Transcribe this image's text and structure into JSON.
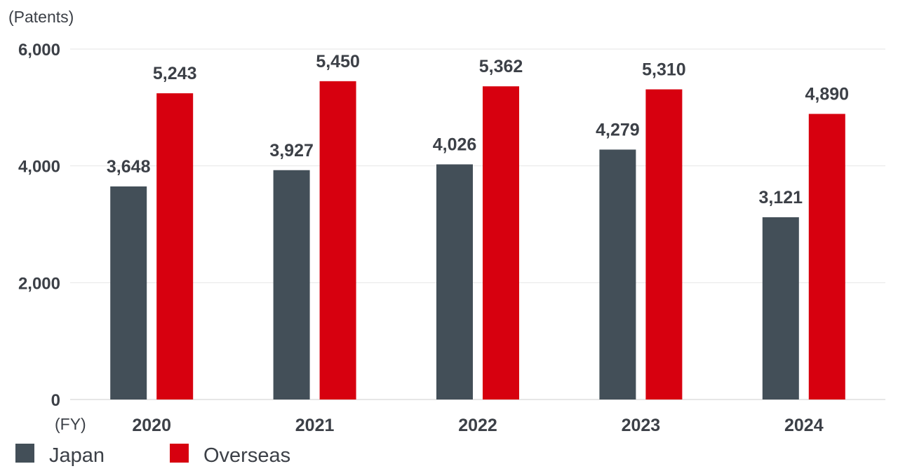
{
  "chart_data": {
    "type": "bar",
    "ylabel": "(Patents)",
    "xlabel": "(FY)",
    "categories": [
      "2020",
      "2021",
      "2022",
      "2023",
      "2024"
    ],
    "series": [
      {
        "name": "Japan",
        "values": [
          3648,
          3927,
          4026,
          4279,
          3121
        ],
        "labels": [
          "3,648",
          "3,927",
          "4,026",
          "4,279",
          "3,121"
        ],
        "color": "#434f58"
      },
      {
        "name": "Overseas",
        "values": [
          5243,
          5450,
          5362,
          5310,
          4890
        ],
        "labels": [
          "5,243",
          "5,450",
          "5,362",
          "5,310",
          "4,890"
        ],
        "color": "#d7000f"
      }
    ],
    "ylim": [
      0,
      6000
    ],
    "yticks": [
      0,
      2000,
      4000,
      6000
    ],
    "ytick_labels": [
      "0",
      "2,000",
      "4,000",
      "6,000"
    ],
    "grid": true,
    "legend_position": "bottom-left"
  }
}
